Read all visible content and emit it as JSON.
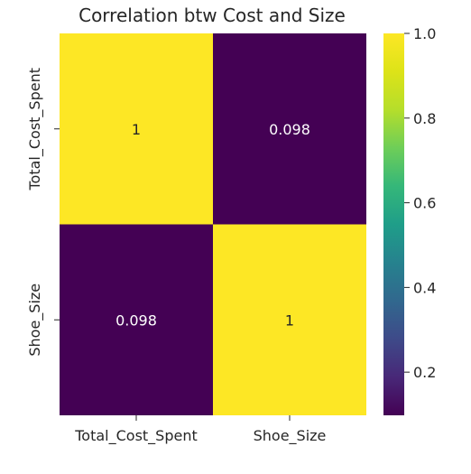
{
  "chart_data": {
    "type": "heatmap",
    "title": "Correlation btw Cost and Size",
    "xlabel": "",
    "ylabel": "",
    "x_categories": [
      "Total_Cost_Spent",
      "Shoe_Size"
    ],
    "y_categories": [
      "Total_Cost_Spent",
      "Shoe_Size"
    ],
    "values": [
      [
        1,
        0.098
      ],
      [
        0.098,
        1
      ]
    ],
    "annotations": [
      [
        "1",
        "0.098"
      ],
      [
        "0.098",
        "1"
      ]
    ],
    "colormap": "viridis",
    "colorbar": {
      "range": [
        0.098,
        1.0
      ],
      "ticks": [
        0.2,
        0.4,
        0.6,
        0.8,
        1.0
      ],
      "tick_labels": [
        "0.2",
        "0.4",
        "0.6",
        "0.8",
        "1.0"
      ]
    },
    "colors": {
      "high": "#fde725",
      "low": "#440154",
      "text_on_high": "#262626",
      "text_on_low": "#ffffff"
    }
  }
}
